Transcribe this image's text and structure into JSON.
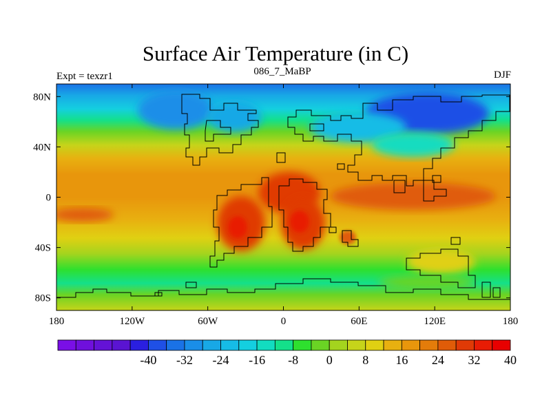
{
  "title": "Surface Air Temperature (in C)",
  "subtitle_left": "Expt = texzr1",
  "subtitle_center": "086_7_MaBP",
  "subtitle_right": "DJF",
  "lat_ticks": [
    {
      "label": "80N",
      "value": 80
    },
    {
      "label": "40N",
      "value": 40
    },
    {
      "label": "0",
      "value": 0
    },
    {
      "label": "40S",
      "value": -40
    },
    {
      "label": "80S",
      "value": -80
    }
  ],
  "lon_ticks": [
    {
      "label": "180",
      "value": -180
    },
    {
      "label": "120W",
      "value": -120
    },
    {
      "label": "60W",
      "value": -60
    },
    {
      "label": "0",
      "value": 0
    },
    {
      "label": "60E",
      "value": 60
    },
    {
      "label": "120E",
      "value": 120
    },
    {
      "label": "180",
      "value": 180
    }
  ],
  "colorbar": {
    "colors": [
      "#7a0fe6",
      "#6f10dc",
      "#6412d6",
      "#5a14d2",
      "#2a1fe0",
      "#1f50e6",
      "#1a72e6",
      "#1a8ee8",
      "#18a8e6",
      "#16bce6",
      "#14cfe0",
      "#12dcc0",
      "#14e08a",
      "#2ee02e",
      "#6ad424",
      "#a4d41e",
      "#c6d41a",
      "#e0d012",
      "#e8b010",
      "#e8960c",
      "#e47c0a",
      "#e05c08",
      "#e03a06",
      "#e81c04",
      "#e80000"
    ],
    "labels": [
      "-40",
      "-32",
      "-24",
      "-16",
      "-8",
      "0",
      "8",
      "16",
      "24",
      "32",
      "40"
    ]
  }
}
